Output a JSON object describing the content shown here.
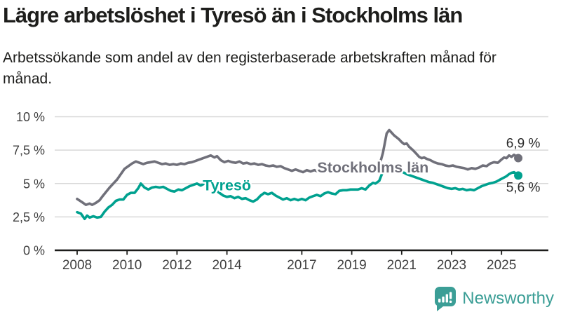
{
  "header": {},
  "chart_data": {
    "type": "line",
    "title": "Lägre arbetslöshet i Tyresö än i Stockholms län",
    "subtitle": "Arbetssökande som andel av den registerbaserade arbetskraften månad för månad.",
    "unit": "%",
    "grid": true,
    "legend_position": "inline-labels",
    "ylim": [
      0,
      10
    ],
    "xlim": [
      2007.1,
      2026.9
    ],
    "y_ticks": [
      {
        "value": 10,
        "label": "10 %"
      },
      {
        "value": 7.5,
        "label": "7,5 %"
      },
      {
        "value": 5,
        "label": "5 %"
      },
      {
        "value": 2.5,
        "label": "2,5 %"
      },
      {
        "value": 0,
        "label": "0 %"
      }
    ],
    "x_ticks": [
      2008,
      2010,
      2012,
      2014,
      2017,
      2019,
      2021,
      2023,
      2025
    ],
    "colors": {
      "stockholm": "#70707a",
      "tyreso": "#00a18f",
      "grid": "#d8d8d8",
      "axis": "#1d1d1b",
      "tick_text": "#3f3f3f",
      "value_text": "#2a2a2a"
    },
    "series": [
      {
        "name": "Stockholms län",
        "color": "#70707a",
        "end_label": "6,9 %",
        "end_label_position": "above",
        "label_anchor": {
          "year": 2019.85,
          "value": 5.83
        },
        "points": [
          [
            2008.0,
            3.85
          ],
          [
            2008.2,
            3.6
          ],
          [
            2008.35,
            3.4
          ],
          [
            2008.5,
            3.5
          ],
          [
            2008.6,
            3.4
          ],
          [
            2008.75,
            3.55
          ],
          [
            2008.9,
            3.75
          ],
          [
            2009.0,
            4.0
          ],
          [
            2009.15,
            4.35
          ],
          [
            2009.3,
            4.7
          ],
          [
            2009.45,
            5.0
          ],
          [
            2009.6,
            5.3
          ],
          [
            2009.75,
            5.7
          ],
          [
            2009.9,
            6.1
          ],
          [
            2010.05,
            6.3
          ],
          [
            2010.2,
            6.5
          ],
          [
            2010.35,
            6.65
          ],
          [
            2010.5,
            6.55
          ],
          [
            2010.65,
            6.45
          ],
          [
            2010.8,
            6.55
          ],
          [
            2010.95,
            6.6
          ],
          [
            2011.1,
            6.65
          ],
          [
            2011.25,
            6.55
          ],
          [
            2011.4,
            6.45
          ],
          [
            2011.55,
            6.5
          ],
          [
            2011.7,
            6.4
          ],
          [
            2011.85,
            6.45
          ],
          [
            2012.0,
            6.4
          ],
          [
            2012.15,
            6.5
          ],
          [
            2012.3,
            6.45
          ],
          [
            2012.45,
            6.55
          ],
          [
            2012.6,
            6.6
          ],
          [
            2012.75,
            6.7
          ],
          [
            2012.9,
            6.8
          ],
          [
            2013.05,
            6.9
          ],
          [
            2013.2,
            7.0
          ],
          [
            2013.35,
            7.1
          ],
          [
            2013.5,
            6.95
          ],
          [
            2013.6,
            7.05
          ],
          [
            2013.75,
            6.75
          ],
          [
            2013.9,
            6.6
          ],
          [
            2014.05,
            6.7
          ],
          [
            2014.2,
            6.6
          ],
          [
            2014.35,
            6.55
          ],
          [
            2014.5,
            6.65
          ],
          [
            2014.65,
            6.5
          ],
          [
            2014.8,
            6.55
          ],
          [
            2014.95,
            6.45
          ],
          [
            2015.1,
            6.5
          ],
          [
            2015.25,
            6.4
          ],
          [
            2015.4,
            6.45
          ],
          [
            2015.55,
            6.35
          ],
          [
            2015.7,
            6.3
          ],
          [
            2015.85,
            6.35
          ],
          [
            2016.0,
            6.25
          ],
          [
            2016.15,
            6.3
          ],
          [
            2016.3,
            6.15
          ],
          [
            2016.45,
            6.05
          ],
          [
            2016.6,
            5.95
          ],
          [
            2016.75,
            6.05
          ],
          [
            2016.9,
            5.95
          ],
          [
            2017.05,
            5.85
          ],
          [
            2017.2,
            6.0
          ],
          [
            2017.35,
            5.9
          ],
          [
            2017.5,
            6.0
          ],
          [
            2017.65,
            5.9
          ],
          [
            2017.8,
            5.95
          ],
          [
            2017.95,
            6.0
          ],
          [
            2018.1,
            5.95
          ],
          [
            2018.25,
            6.05
          ],
          [
            2018.4,
            5.95
          ],
          [
            2018.55,
            6.0
          ],
          [
            2018.7,
            5.95
          ],
          [
            2018.85,
            6.0
          ],
          [
            2019.0,
            6.0
          ],
          [
            2019.2,
            6.05
          ],
          [
            2019.4,
            6.0
          ],
          [
            2019.6,
            6.05
          ],
          [
            2019.8,
            6.1
          ],
          [
            2019.95,
            6.15
          ],
          [
            2020.1,
            6.3
          ],
          [
            2020.25,
            7.3
          ],
          [
            2020.4,
            8.75
          ],
          [
            2020.5,
            9.0
          ],
          [
            2020.6,
            8.8
          ],
          [
            2020.7,
            8.6
          ],
          [
            2020.8,
            8.45
          ],
          [
            2020.9,
            8.3
          ],
          [
            2021.0,
            8.1
          ],
          [
            2021.1,
            7.95
          ],
          [
            2021.2,
            8.0
          ],
          [
            2021.3,
            7.75
          ],
          [
            2021.45,
            7.5
          ],
          [
            2021.6,
            7.2
          ],
          [
            2021.7,
            7.0
          ],
          [
            2021.8,
            6.9
          ],
          [
            2021.9,
            6.95
          ],
          [
            2022.0,
            6.85
          ],
          [
            2022.15,
            6.75
          ],
          [
            2022.3,
            6.6
          ],
          [
            2022.45,
            6.5
          ],
          [
            2022.6,
            6.45
          ],
          [
            2022.75,
            6.35
          ],
          [
            2022.9,
            6.3
          ],
          [
            2023.05,
            6.35
          ],
          [
            2023.2,
            6.25
          ],
          [
            2023.35,
            6.2
          ],
          [
            2023.5,
            6.15
          ],
          [
            2023.65,
            6.05
          ],
          [
            2023.8,
            6.15
          ],
          [
            2023.95,
            6.1
          ],
          [
            2024.1,
            6.2
          ],
          [
            2024.25,
            6.35
          ],
          [
            2024.4,
            6.3
          ],
          [
            2024.55,
            6.5
          ],
          [
            2024.7,
            6.6
          ],
          [
            2024.85,
            6.55
          ],
          [
            2025.0,
            6.8
          ],
          [
            2025.1,
            6.95
          ],
          [
            2025.2,
            6.9
          ],
          [
            2025.3,
            7.1
          ],
          [
            2025.4,
            7.0
          ],
          [
            2025.5,
            7.15
          ],
          [
            2025.58,
            7.05
          ],
          [
            2025.67,
            6.9
          ]
        ]
      },
      {
        "name": "Tyresö",
        "color": "#00a18f",
        "end_label": "5,6 %",
        "end_label_position": "below",
        "label_anchor": {
          "year": 2014.0,
          "value": 4.5
        },
        "points": [
          [
            2008.0,
            2.85
          ],
          [
            2008.15,
            2.75
          ],
          [
            2008.3,
            2.35
          ],
          [
            2008.4,
            2.6
          ],
          [
            2008.5,
            2.45
          ],
          [
            2008.65,
            2.55
          ],
          [
            2008.8,
            2.45
          ],
          [
            2008.95,
            2.5
          ],
          [
            2009.1,
            2.9
          ],
          [
            2009.25,
            3.2
          ],
          [
            2009.4,
            3.4
          ],
          [
            2009.55,
            3.7
          ],
          [
            2009.7,
            3.8
          ],
          [
            2009.85,
            3.8
          ],
          [
            2010.0,
            4.15
          ],
          [
            2010.15,
            4.3
          ],
          [
            2010.3,
            4.3
          ],
          [
            2010.45,
            4.65
          ],
          [
            2010.55,
            5.0
          ],
          [
            2010.7,
            4.7
          ],
          [
            2010.85,
            4.55
          ],
          [
            2011.0,
            4.7
          ],
          [
            2011.15,
            4.75
          ],
          [
            2011.3,
            4.7
          ],
          [
            2011.45,
            4.75
          ],
          [
            2011.6,
            4.6
          ],
          [
            2011.75,
            4.45
          ],
          [
            2011.9,
            4.4
          ],
          [
            2012.05,
            4.55
          ],
          [
            2012.2,
            4.5
          ],
          [
            2012.35,
            4.65
          ],
          [
            2012.5,
            4.8
          ],
          [
            2012.65,
            4.9
          ],
          [
            2012.8,
            5.0
          ],
          [
            2012.95,
            4.85
          ],
          [
            2013.1,
            5.0
          ],
          [
            2013.25,
            5.1
          ],
          [
            2013.4,
            4.85
          ],
          [
            2013.55,
            4.5
          ],
          [
            2013.7,
            4.3
          ],
          [
            2013.85,
            4.1
          ],
          [
            2014.0,
            4.0
          ],
          [
            2014.15,
            4.05
          ],
          [
            2014.3,
            3.9
          ],
          [
            2014.45,
            4.0
          ],
          [
            2014.6,
            3.85
          ],
          [
            2014.75,
            3.9
          ],
          [
            2014.9,
            3.75
          ],
          [
            2015.05,
            3.65
          ],
          [
            2015.2,
            3.8
          ],
          [
            2015.35,
            4.1
          ],
          [
            2015.5,
            4.3
          ],
          [
            2015.65,
            4.2
          ],
          [
            2015.8,
            4.3
          ],
          [
            2015.95,
            4.1
          ],
          [
            2016.1,
            3.95
          ],
          [
            2016.25,
            3.8
          ],
          [
            2016.4,
            3.9
          ],
          [
            2016.55,
            3.75
          ],
          [
            2016.7,
            3.85
          ],
          [
            2016.85,
            3.75
          ],
          [
            2017.0,
            3.85
          ],
          [
            2017.15,
            3.75
          ],
          [
            2017.3,
            3.95
          ],
          [
            2017.45,
            4.05
          ],
          [
            2017.6,
            4.15
          ],
          [
            2017.75,
            4.05
          ],
          [
            2017.9,
            4.25
          ],
          [
            2018.05,
            4.35
          ],
          [
            2018.2,
            4.25
          ],
          [
            2018.35,
            4.2
          ],
          [
            2018.5,
            4.45
          ],
          [
            2018.65,
            4.5
          ],
          [
            2018.8,
            4.5
          ],
          [
            2018.95,
            4.55
          ],
          [
            2019.1,
            4.55
          ],
          [
            2019.25,
            4.55
          ],
          [
            2019.4,
            4.65
          ],
          [
            2019.55,
            4.55
          ],
          [
            2019.7,
            4.85
          ],
          [
            2019.85,
            5.05
          ],
          [
            2019.95,
            5.0
          ],
          [
            2020.1,
            5.2
          ],
          [
            2020.25,
            5.9
          ],
          [
            2020.4,
            6.4
          ],
          [
            2020.5,
            6.45
          ],
          [
            2020.6,
            6.35
          ],
          [
            2020.75,
            6.2
          ],
          [
            2020.9,
            6.0
          ],
          [
            2021.05,
            5.85
          ],
          [
            2021.2,
            5.7
          ],
          [
            2021.35,
            5.6
          ],
          [
            2021.5,
            5.5
          ],
          [
            2021.65,
            5.4
          ],
          [
            2021.8,
            5.3
          ],
          [
            2021.95,
            5.2
          ],
          [
            2022.1,
            5.1
          ],
          [
            2022.25,
            5.05
          ],
          [
            2022.4,
            4.95
          ],
          [
            2022.55,
            4.85
          ],
          [
            2022.7,
            4.75
          ],
          [
            2022.85,
            4.65
          ],
          [
            2023.0,
            4.6
          ],
          [
            2023.15,
            4.65
          ],
          [
            2023.3,
            4.55
          ],
          [
            2023.45,
            4.6
          ],
          [
            2023.6,
            4.5
          ],
          [
            2023.75,
            4.55
          ],
          [
            2023.9,
            4.5
          ],
          [
            2024.05,
            4.65
          ],
          [
            2024.2,
            4.8
          ],
          [
            2024.35,
            4.9
          ],
          [
            2024.5,
            5.0
          ],
          [
            2024.65,
            5.05
          ],
          [
            2024.8,
            5.15
          ],
          [
            2024.95,
            5.3
          ],
          [
            2025.1,
            5.45
          ],
          [
            2025.2,
            5.55
          ],
          [
            2025.3,
            5.7
          ],
          [
            2025.4,
            5.8
          ],
          [
            2025.5,
            5.85
          ],
          [
            2025.58,
            5.75
          ],
          [
            2025.67,
            5.6
          ]
        ]
      }
    ]
  },
  "branding": {
    "logo_text": "Newsworthy",
    "logo_color": "#3b9e96"
  }
}
